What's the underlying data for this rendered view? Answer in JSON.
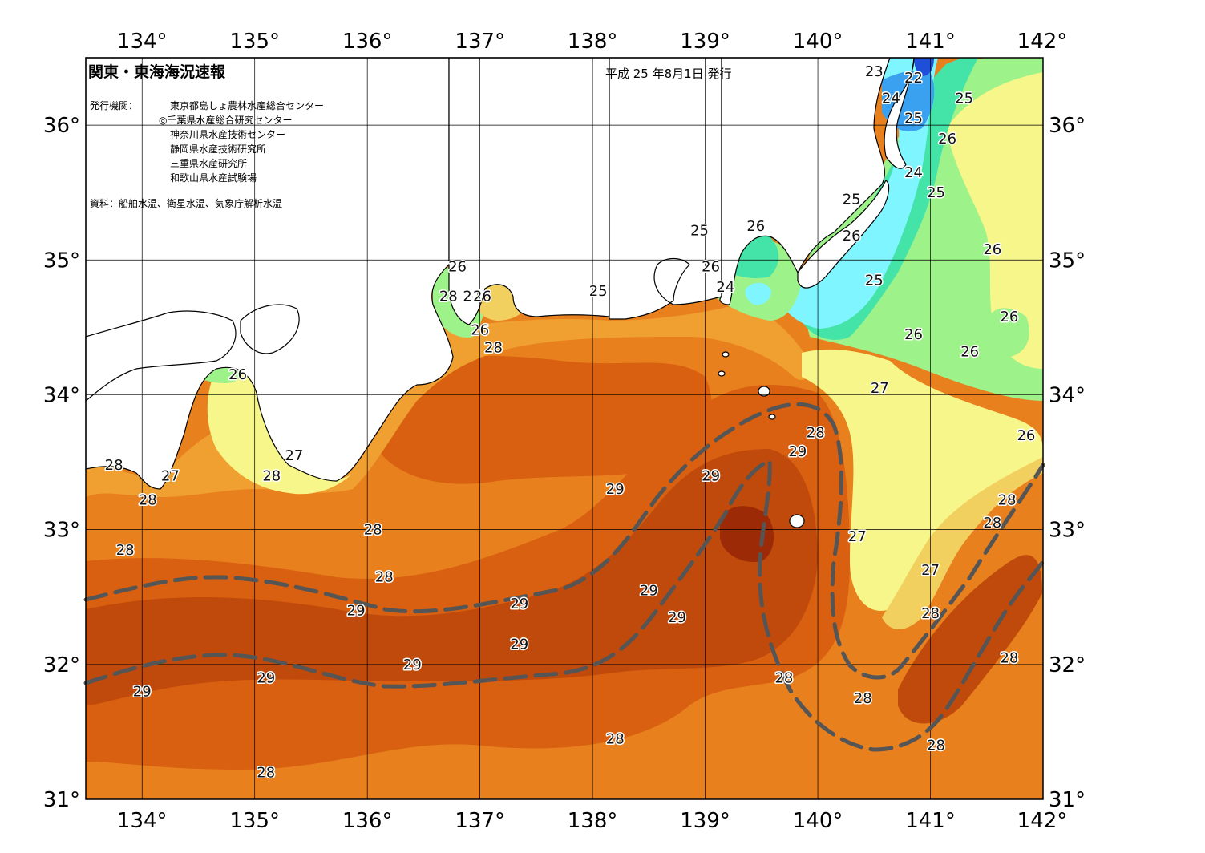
{
  "title": "関東・東海海況速報",
  "issue_date": "平成 25 年8月1日 発行",
  "issuer_label": "発行機関：",
  "issuers": [
    "東京都島しょ農林水産総合センター",
    "◎千葉県水産総合研究センター",
    "神奈川県水産技術センター",
    "静岡県水産技術研究所",
    "三重県水産研究所",
    "和歌山県水産試験場"
  ],
  "source": "資料：船舶水温、衛星水温、気象庁解析水温",
  "longitude_ticks": [
    "134°",
    "135°",
    "136°",
    "137°",
    "138°",
    "139°",
    "140°",
    "141°",
    "142°"
  ],
  "latitude_ticks": [
    "31°",
    "32°",
    "33°",
    "34°",
    "35°",
    "36°"
  ],
  "colors": {
    "t22": "#1f4fd8",
    "t23": "#3aa0f0",
    "t24": "#7ff5ff",
    "t25": "#44e4a8",
    "t26": "#9ef28a",
    "t27": "#f7f68a",
    "t27b": "#f2d060",
    "t28": "#f0a030",
    "t28b": "#e8801e",
    "t29": "#d86010",
    "t29b": "#c04a0c",
    "t30": "#9c2a06",
    "land": "#ffffff",
    "kuroshio": "#555555"
  },
  "isotherm_labels": [
    {
      "text": "23",
      "lon": 140.5,
      "lat": 36.4
    },
    {
      "text": "22",
      "lon": 140.85,
      "lat": 36.35
    },
    {
      "text": "24",
      "lon": 140.65,
      "lat": 36.2
    },
    {
      "text": "25",
      "lon": 141.3,
      "lat": 36.2
    },
    {
      "text": "25",
      "lon": 140.85,
      "lat": 36.05
    },
    {
      "text": "26",
      "lon": 141.15,
      "lat": 35.9
    },
    {
      "text": "24",
      "lon": 140.85,
      "lat": 35.65
    },
    {
      "text": "25",
      "lon": 141.05,
      "lat": 35.5
    },
    {
      "text": "25",
      "lon": 140.3,
      "lat": 35.45
    },
    {
      "text": "26",
      "lon": 140.3,
      "lat": 35.18
    },
    {
      "text": "26",
      "lon": 141.55,
      "lat": 35.08
    },
    {
      "text": "25",
      "lon": 140.5,
      "lat": 34.85
    },
    {
      "text": "26",
      "lon": 141.7,
      "lat": 34.58
    },
    {
      "text": "26",
      "lon": 140.85,
      "lat": 34.45
    },
    {
      "text": "26",
      "lon": 141.35,
      "lat": 34.32
    },
    {
      "text": "27",
      "lon": 140.55,
      "lat": 34.05
    },
    {
      "text": "26",
      "lon": 141.85,
      "lat": 33.7
    },
    {
      "text": "25",
      "lon": 138.95,
      "lat": 35.22
    },
    {
      "text": "26",
      "lon": 139.45,
      "lat": 35.25
    },
    {
      "text": "26",
      "lon": 139.05,
      "lat": 34.95
    },
    {
      "text": "24",
      "lon": 139.18,
      "lat": 34.8
    },
    {
      "text": "25",
      "lon": 138.05,
      "lat": 34.77
    },
    {
      "text": "26",
      "lon": 136.8,
      "lat": 34.95
    },
    {
      "text": "28",
      "lon": 136.72,
      "lat": 34.73
    },
    {
      "text": "27",
      "lon": 136.93,
      "lat": 34.73
    },
    {
      "text": "26",
      "lon": 137.02,
      "lat": 34.73
    },
    {
      "text": "26",
      "lon": 137.0,
      "lat": 34.48
    },
    {
      "text": "28",
      "lon": 137.12,
      "lat": 34.35
    },
    {
      "text": "26",
      "lon": 134.85,
      "lat": 34.15
    },
    {
      "text": "27",
      "lon": 135.35,
      "lat": 33.55
    },
    {
      "text": "28",
      "lon": 135.15,
      "lat": 33.4
    },
    {
      "text": "28",
      "lon": 133.75,
      "lat": 33.48
    },
    {
      "text": "27",
      "lon": 134.25,
      "lat": 33.4
    },
    {
      "text": "28",
      "lon": 134.05,
      "lat": 33.22
    },
    {
      "text": "28",
      "lon": 133.85,
      "lat": 32.85
    },
    {
      "text": "28",
      "lon": 136.05,
      "lat": 33.0
    },
    {
      "text": "28",
      "lon": 136.15,
      "lat": 32.65
    },
    {
      "text": "29",
      "lon": 135.9,
      "lat": 32.4
    },
    {
      "text": "29",
      "lon": 137.35,
      "lat": 32.45
    },
    {
      "text": "29",
      "lon": 137.35,
      "lat": 32.15
    },
    {
      "text": "29",
      "lon": 136.4,
      "lat": 32.0
    },
    {
      "text": "29",
      "lon": 135.1,
      "lat": 31.9
    },
    {
      "text": "29",
      "lon": 134.0,
      "lat": 31.8
    },
    {
      "text": "28",
      "lon": 135.1,
      "lat": 31.2
    },
    {
      "text": "28",
      "lon": 138.2,
      "lat": 31.45
    },
    {
      "text": "29",
      "lon": 138.2,
      "lat": 33.3
    },
    {
      "text": "29",
      "lon": 138.5,
      "lat": 32.55
    },
    {
      "text": "29",
      "lon": 138.75,
      "lat": 32.35
    },
    {
      "text": "29",
      "lon": 139.05,
      "lat": 33.4
    },
    {
      "text": "29",
      "lon": 139.82,
      "lat": 33.58
    },
    {
      "text": "28",
      "lon": 139.98,
      "lat": 33.72
    },
    {
      "text": "27",
      "lon": 140.35,
      "lat": 32.95
    },
    {
      "text": "27",
      "lon": 141.0,
      "lat": 32.7
    },
    {
      "text": "28",
      "lon": 141.68,
      "lat": 33.22
    },
    {
      "text": "28",
      "lon": 141.55,
      "lat": 33.05
    },
    {
      "text": "28",
      "lon": 141.0,
      "lat": 32.38
    },
    {
      "text": "28",
      "lon": 141.7,
      "lat": 32.05
    },
    {
      "text": "28",
      "lon": 139.7,
      "lat": 31.9
    },
    {
      "text": "28",
      "lon": 140.4,
      "lat": 31.75
    },
    {
      "text": "28",
      "lon": 141.05,
      "lat": 31.4
    }
  ]
}
